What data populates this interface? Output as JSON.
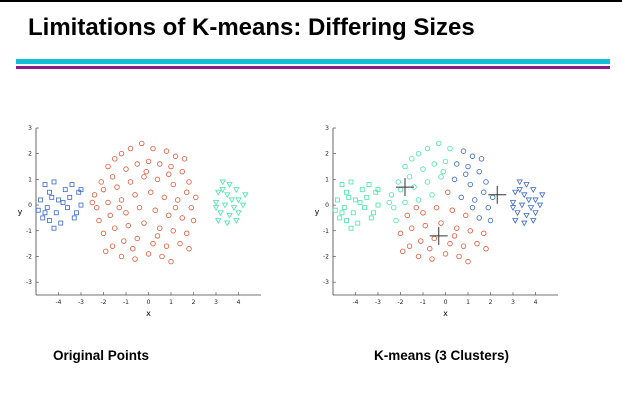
{
  "slide": {
    "title": "Limitations of K-means: Differing Sizes",
    "caption_left": "Original Points",
    "caption_right": "K-means (3 Clusters)"
  },
  "colors": {
    "blue": "#3a66c9",
    "red": "#e0553a",
    "green": "#46e6a6",
    "rule_cyan": "#12bdd8",
    "rule_purple": "#8a1a8c"
  },
  "chart_data": [
    {
      "type": "scatter",
      "title": "",
      "xlabel": "x",
      "ylabel": "y",
      "xlim": [
        -5,
        5
      ],
      "ylim": [
        -3.5,
        3
      ],
      "xticks": [
        "-4",
        "-3",
        "-2",
        "-1",
        "0",
        "1",
        "2",
        "3",
        "4"
      ],
      "yticks": [
        "3",
        "2",
        "1",
        "0",
        "-1",
        "-2",
        "-3"
      ],
      "series": [
        {
          "marker": "square",
          "color": "#3a66c9",
          "points": [
            [
              -4.6,
              0.8
            ],
            [
              -4.4,
              0.5
            ],
            [
              -4.2,
              0.9
            ],
            [
              -4.8,
              0.2
            ],
            [
              -4.5,
              -0.1
            ],
            [
              -4.3,
              0.3
            ],
            [
              -4.1,
              -0.3
            ],
            [
              -4.7,
              -0.5
            ],
            [
              -4.4,
              -0.6
            ],
            [
              -4.0,
              0.2
            ],
            [
              -3.9,
              -0.7
            ],
            [
              -3.7,
              0.6
            ],
            [
              -3.6,
              -0.1
            ],
            [
              -3.5,
              0.3
            ],
            [
              -3.3,
              -0.5
            ],
            [
              -3.1,
              0.5
            ],
            [
              -3.0,
              0.0
            ],
            [
              -3.2,
              -0.3
            ],
            [
              -4.9,
              -0.2
            ],
            [
              -4.6,
              -0.3
            ],
            [
              -3.8,
              0.1
            ],
            [
              -4.2,
              -0.9
            ],
            [
              -3.4,
              0.8
            ],
            [
              -3.0,
              0.6
            ]
          ]
        },
        {
          "marker": "circle",
          "color": "#e0553a",
          "points": [
            [
              -1.8,
              1.5
            ],
            [
              -1.5,
              1.8
            ],
            [
              -1.2,
              2.0
            ],
            [
              -0.8,
              2.2
            ],
            [
              -0.3,
              2.4
            ],
            [
              0.2,
              2.2
            ],
            [
              0.8,
              2.1
            ],
            [
              1.2,
              1.9
            ],
            [
              1.6,
              1.8
            ],
            [
              -2.1,
              0.9
            ],
            [
              -1.6,
              1.1
            ],
            [
              -1.0,
              1.4
            ],
            [
              -0.5,
              1.6
            ],
            [
              0.0,
              1.7
            ],
            [
              0.5,
              1.6
            ],
            [
              1.0,
              1.5
            ],
            [
              1.5,
              1.3
            ],
            [
              1.8,
              0.9
            ],
            [
              -2.4,
              0.4
            ],
            [
              -2.0,
              0.6
            ],
            [
              -1.4,
              0.7
            ],
            [
              -0.8,
              0.9
            ],
            [
              -0.2,
              1.1
            ],
            [
              0.4,
              1.0
            ],
            [
              1.1,
              0.8
            ],
            [
              1.7,
              0.5
            ],
            [
              2.1,
              0.3
            ],
            [
              -2.3,
              -0.1
            ],
            [
              -1.8,
              0.1
            ],
            [
              -1.2,
              0.2
            ],
            [
              -0.6,
              0.4
            ],
            [
              0.1,
              0.5
            ],
            [
              0.7,
              0.3
            ],
            [
              1.3,
              0.2
            ],
            [
              1.9,
              -0.1
            ],
            [
              -2.2,
              -0.6
            ],
            [
              -1.7,
              -0.4
            ],
            [
              -1.0,
              -0.3
            ],
            [
              -0.4,
              -0.1
            ],
            [
              0.3,
              -0.2
            ],
            [
              0.9,
              -0.4
            ],
            [
              1.5,
              -0.5
            ],
            [
              2.0,
              -0.6
            ],
            [
              -2.0,
              -1.1
            ],
            [
              -1.5,
              -0.9
            ],
            [
              -0.9,
              -0.8
            ],
            [
              -0.2,
              -0.7
            ],
            [
              0.5,
              -0.9
            ],
            [
              1.1,
              -1.0
            ],
            [
              1.7,
              -1.1
            ],
            [
              -1.6,
              -1.6
            ],
            [
              -1.1,
              -1.4
            ],
            [
              -0.5,
              -1.3
            ],
            [
              0.2,
              -1.5
            ],
            [
              0.8,
              -1.6
            ],
            [
              1.4,
              -1.5
            ],
            [
              -1.2,
              -2.0
            ],
            [
              -0.6,
              -2.1
            ],
            [
              0.0,
              -1.9
            ],
            [
              0.6,
              -2.0
            ],
            [
              1.0,
              -2.2
            ],
            [
              -1.9,
              -1.8
            ],
            [
              1.8,
              -1.7
            ],
            [
              -0.1,
              1.3
            ],
            [
              0.9,
              1.2
            ],
            [
              -1.3,
              -0.1
            ],
            [
              1.2,
              -0.1
            ],
            [
              -0.7,
              -1.7
            ],
            [
              0.4,
              -1.2
            ],
            [
              -2.5,
              0.1
            ]
          ]
        },
        {
          "marker": "triangle",
          "color": "#46e6a6",
          "points": [
            [
              3.3,
              0.9
            ],
            [
              3.6,
              0.8
            ],
            [
              3.9,
              0.6
            ],
            [
              3.1,
              0.5
            ],
            [
              3.5,
              0.4
            ],
            [
              4.0,
              0.2
            ],
            [
              3.0,
              0.1
            ],
            [
              3.4,
              0.0
            ],
            [
              3.8,
              -0.1
            ],
            [
              4.2,
              0.0
            ],
            [
              3.2,
              -0.3
            ],
            [
              3.6,
              -0.4
            ],
            [
              4.0,
              -0.3
            ],
            [
              3.1,
              -0.6
            ],
            [
              3.5,
              -0.7
            ],
            [
              3.9,
              -0.6
            ],
            [
              3.7,
              0.2
            ],
            [
              4.3,
              0.4
            ],
            [
              3.3,
              0.6
            ],
            [
              3.0,
              -0.1
            ]
          ]
        }
      ]
    },
    {
      "type": "scatter",
      "title": "",
      "xlabel": "x",
      "ylabel": "y",
      "xlim": [
        -5,
        5
      ],
      "ylim": [
        -3.5,
        3
      ],
      "xticks": [
        "-4",
        "-3",
        "-2",
        "-1",
        "0",
        "1",
        "2",
        "3",
        "4"
      ],
      "yticks": [
        "3",
        "2",
        "1",
        "0",
        "-1",
        "-2",
        "-3"
      ],
      "centroids": [
        [
          -1.8,
          0.7
        ],
        [
          -0.3,
          -1.2
        ],
        [
          2.3,
          0.4
        ]
      ],
      "series": [
        {
          "marker": "square",
          "color": "#46e6a6",
          "points": [
            [
              -4.6,
              0.8
            ],
            [
              -4.4,
              0.5
            ],
            [
              -4.2,
              0.9
            ],
            [
              -4.8,
              0.2
            ],
            [
              -4.5,
              -0.1
            ],
            [
              -4.3,
              0.3
            ],
            [
              -4.1,
              -0.3
            ],
            [
              -4.7,
              -0.5
            ],
            [
              -4.4,
              -0.6
            ],
            [
              -4.0,
              0.2
            ],
            [
              -3.9,
              -0.7
            ],
            [
              -3.7,
              0.6
            ],
            [
              -3.6,
              -0.1
            ],
            [
              -3.5,
              0.3
            ],
            [
              -3.3,
              -0.5
            ],
            [
              -3.1,
              0.5
            ],
            [
              -3.0,
              0.0
            ],
            [
              -3.2,
              -0.3
            ],
            [
              -4.9,
              -0.2
            ],
            [
              -4.6,
              -0.3
            ],
            [
              -3.8,
              0.1
            ],
            [
              -4.2,
              -0.9
            ],
            [
              -3.4,
              0.8
            ],
            [
              -3.0,
              0.6
            ]
          ]
        },
        {
          "marker": "circle",
          "color": "#46e6a6",
          "points": [
            [
              -1.8,
              1.5
            ],
            [
              -1.5,
              1.8
            ],
            [
              -1.2,
              2.0
            ],
            [
              -0.8,
              2.2
            ],
            [
              -0.3,
              2.4
            ],
            [
              0.2,
              2.2
            ],
            [
              -2.1,
              0.9
            ],
            [
              -1.6,
              1.1
            ],
            [
              -1.0,
              1.4
            ],
            [
              -0.5,
              1.6
            ],
            [
              0.0,
              1.7
            ],
            [
              -2.4,
              0.4
            ],
            [
              -2.0,
              0.6
            ],
            [
              -1.4,
              0.7
            ],
            [
              -0.8,
              0.9
            ],
            [
              -0.2,
              1.1
            ],
            [
              -2.3,
              -0.1
            ],
            [
              -1.8,
              0.1
            ],
            [
              -1.2,
              0.2
            ],
            [
              -0.6,
              0.4
            ],
            [
              -0.1,
              1.3
            ],
            [
              -2.2,
              -0.6
            ],
            [
              -2.5,
              0.1
            ]
          ]
        },
        {
          "marker": "circle",
          "color": "#3a66c9",
          "points": [
            [
              0.8,
              2.1
            ],
            [
              1.2,
              1.9
            ],
            [
              1.6,
              1.8
            ],
            [
              0.5,
              1.6
            ],
            [
              1.0,
              1.5
            ],
            [
              1.5,
              1.3
            ],
            [
              1.8,
              0.9
            ],
            [
              1.1,
              0.8
            ],
            [
              1.7,
              0.5
            ],
            [
              2.1,
              0.3
            ],
            [
              1.3,
              0.2
            ],
            [
              1.9,
              -0.1
            ],
            [
              1.5,
              -0.5
            ],
            [
              2.0,
              -0.6
            ],
            [
              0.9,
              1.2
            ],
            [
              1.2,
              -0.1
            ],
            [
              0.4,
              1.0
            ],
            [
              0.7,
              0.3
            ]
          ]
        },
        {
          "marker": "circle",
          "color": "#e0553a",
          "points": [
            [
              -1.7,
              -0.4
            ],
            [
              -1.0,
              -0.3
            ],
            [
              -0.4,
              -0.1
            ],
            [
              0.3,
              -0.2
            ],
            [
              0.9,
              -0.4
            ],
            [
              0.1,
              0.5
            ],
            [
              -2.0,
              -1.1
            ],
            [
              -1.5,
              -0.9
            ],
            [
              -0.9,
              -0.8
            ],
            [
              -0.2,
              -0.7
            ],
            [
              0.5,
              -0.9
            ],
            [
              1.1,
              -1.0
            ],
            [
              1.7,
              -1.1
            ],
            [
              -1.6,
              -1.6
            ],
            [
              -1.1,
              -1.4
            ],
            [
              -0.5,
              -1.3
            ],
            [
              0.2,
              -1.5
            ],
            [
              0.8,
              -1.6
            ],
            [
              1.4,
              -1.5
            ],
            [
              -1.2,
              -2.0
            ],
            [
              -0.6,
              -2.1
            ],
            [
              0.0,
              -1.9
            ],
            [
              0.6,
              -2.0
            ],
            [
              1.0,
              -2.2
            ],
            [
              -1.9,
              -1.8
            ],
            [
              1.8,
              -1.7
            ],
            [
              -1.3,
              -0.1
            ],
            [
              -0.7,
              -1.7
            ],
            [
              0.4,
              -1.2
            ]
          ]
        },
        {
          "marker": "triangle",
          "color": "#3a66c9",
          "points": [
            [
              3.3,
              0.9
            ],
            [
              3.6,
              0.8
            ],
            [
              3.9,
              0.6
            ],
            [
              3.1,
              0.5
            ],
            [
              3.5,
              0.4
            ],
            [
              4.0,
              0.2
            ],
            [
              3.0,
              0.1
            ],
            [
              3.4,
              0.0
            ],
            [
              3.8,
              -0.1
            ],
            [
              4.2,
              0.0
            ],
            [
              3.2,
              -0.3
            ],
            [
              3.6,
              -0.4
            ],
            [
              4.0,
              -0.3
            ],
            [
              3.1,
              -0.6
            ],
            [
              3.5,
              -0.7
            ],
            [
              3.9,
              -0.6
            ],
            [
              3.7,
              0.2
            ],
            [
              4.3,
              0.4
            ],
            [
              3.3,
              0.6
            ],
            [
              3.0,
              -0.1
            ]
          ]
        }
      ]
    }
  ]
}
